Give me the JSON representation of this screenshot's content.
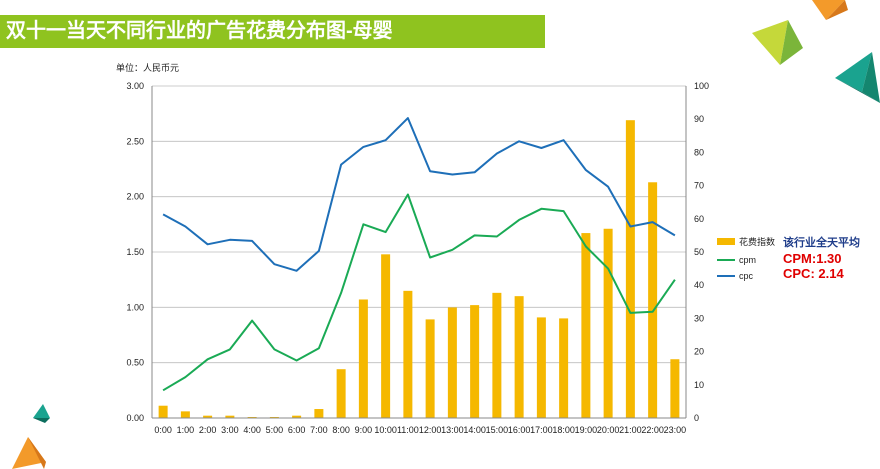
{
  "page": {
    "title": "双十一当天不同行业的广告花费分布图-母婴"
  },
  "colors": {
    "title_bar": "#8fc31f",
    "bar": "#f5b800",
    "cpm": "#1aaa55",
    "cpc": "#1e6fb8"
  },
  "chart_data": {
    "type": "bar",
    "title": "",
    "unit_label": "单位：人民币元",
    "categories": [
      "0:00",
      "1:00",
      "2:00",
      "3:00",
      "4:00",
      "5:00",
      "6:00",
      "7:00",
      "8:00",
      "9:00",
      "10:00",
      "11:00",
      "12:00",
      "13:00",
      "14:00",
      "15:00",
      "16:00",
      "17:00",
      "18:00",
      "19:00",
      "20:00",
      "21:00",
      "22:00",
      "23:00"
    ],
    "ylim_left": [
      0,
      3
    ],
    "yticks_left": [
      "0.00",
      "0.50",
      "1.00",
      "1.50",
      "2.00",
      "2.50",
      "3.00"
    ],
    "ylim_right": [
      0,
      100
    ],
    "yticks_right": [
      "0",
      "10",
      "20",
      "30",
      "40",
      "50",
      "60",
      "70",
      "80",
      "90",
      "100"
    ],
    "grid": true,
    "legend_position": "right",
    "series": [
      {
        "name": "花费指数",
        "type": "bar",
        "axis": "right",
        "values": [
          3.7,
          2,
          0.7,
          0.7,
          0.3,
          0.3,
          0.7,
          2.7,
          14.7,
          35.7,
          49.3,
          38.3,
          29.7,
          33.3,
          34,
          37.7,
          36.7,
          30.3,
          30,
          55.7,
          57,
          89.7,
          71,
          17.7
        ]
      },
      {
        "name": "cpm",
        "type": "line",
        "axis": "left",
        "values": [
          0.25,
          0.37,
          0.53,
          0.62,
          0.88,
          0.62,
          0.52,
          0.63,
          1.13,
          1.75,
          1.68,
          2.02,
          1.45,
          1.52,
          1.65,
          1.64,
          1.79,
          1.89,
          1.87,
          1.55,
          1.35,
          0.95,
          0.96,
          1.25
        ]
      },
      {
        "name": "cpc",
        "type": "line",
        "axis": "left",
        "values": [
          1.84,
          1.73,
          1.57,
          1.61,
          1.6,
          1.39,
          1.33,
          1.51,
          2.29,
          2.45,
          2.51,
          2.71,
          2.23,
          2.2,
          2.22,
          2.39,
          2.5,
          2.44,
          2.51,
          2.24,
          2.09,
          1.73,
          1.77,
          1.65
        ]
      }
    ],
    "annotation": {
      "heading": "该行业全天平均",
      "cpm": "CPM:1.30",
      "cpc": "CPC: 2.14"
    }
  }
}
